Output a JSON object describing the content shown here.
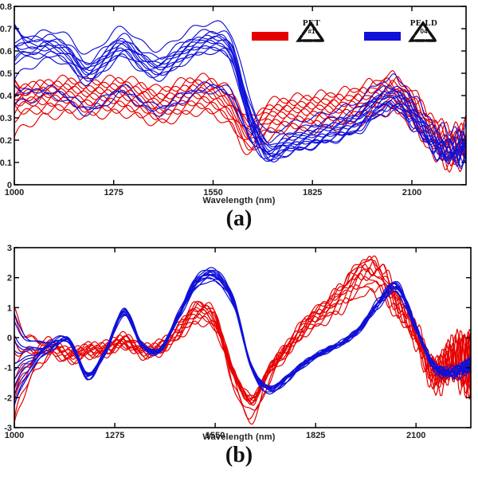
{
  "figure": {
    "caption_a": "(a)",
    "caption_b": "(b)"
  },
  "legend": {
    "items": [
      {
        "swatch_color": "#e60000",
        "code": "#1",
        "label": "PET"
      },
      {
        "swatch_color": "#1010d8",
        "code": "04",
        "label": "PE-LD"
      }
    ]
  },
  "chart_data": [
    {
      "type": "line",
      "id": "a",
      "title": "",
      "xlabel": "Wavelength (nm)",
      "ylabel": "",
      "xlim": [
        1000,
        2250
      ],
      "ylim": [
        0,
        0.8
      ],
      "grid": false,
      "xticks": [
        1000,
        1275,
        1550,
        1825,
        2100
      ],
      "xtick_labels": [
        "1000",
        "1275",
        "1550",
        "1825",
        "2100"
      ],
      "yticks": [
        0,
        0.1,
        0.2,
        0.3,
        0.4,
        0.5,
        0.6,
        0.7,
        0.8
      ],
      "ytick_labels": [
        "0",
        "0.1",
        "0.2",
        "0.3",
        "0.4",
        "0.5",
        "0.6",
        "0.7",
        "0.8"
      ],
      "x_nm": [
        1000,
        1050,
        1100,
        1150,
        1200,
        1250,
        1300,
        1350,
        1400,
        1450,
        1500,
        1550,
        1600,
        1650,
        1700,
        1750,
        1800,
        1850,
        1900,
        1950,
        2000,
        2050,
        2100,
        2150,
        2200,
        2250
      ],
      "series": [
        {
          "name": "PET",
          "color": "#e60000",
          "width": 1.15,
          "values": [
            0.38,
            0.39,
            0.4,
            0.405,
            0.395,
            0.4,
            0.405,
            0.385,
            0.36,
            0.385,
            0.41,
            0.4,
            0.345,
            0.225,
            0.295,
            0.315,
            0.325,
            0.335,
            0.345,
            0.365,
            0.395,
            0.415,
            0.35,
            0.245,
            0.175,
            0.195
          ],
          "dy": [
            -0.085,
            -0.065,
            -0.05,
            -0.035,
            -0.02,
            -0.005,
            0.005,
            0.02,
            0.03,
            0.04,
            0.055,
            0.07
          ],
          "jitter": 0.02,
          "jitter_wl": 65,
          "left_fan": 0.08,
          "end_fan": 0.05
        },
        {
          "name": "PE-LD low subset",
          "color": "#1010d8",
          "width": 1.15,
          "values": [
            0.42,
            0.41,
            0.42,
            0.385,
            0.335,
            0.375,
            0.425,
            0.37,
            0.335,
            0.375,
            0.42,
            0.435,
            0.4,
            0.22,
            0.135,
            0.155,
            0.175,
            0.195,
            0.22,
            0.25,
            0.31,
            0.345,
            0.28,
            0.18,
            0.135,
            0.145
          ],
          "dy": [
            -0.015,
            0,
            0.015
          ],
          "jitter": 0.014,
          "jitter_wl": 70,
          "left_fan": 0.05,
          "end_fan": 0.04
        },
        {
          "name": "PE-LD",
          "color": "#1010d8",
          "width": 1.15,
          "values": [
            0.62,
            0.61,
            0.62,
            0.585,
            0.505,
            0.565,
            0.625,
            0.56,
            0.525,
            0.575,
            0.625,
            0.645,
            0.6,
            0.32,
            0.155,
            0.185,
            0.21,
            0.235,
            0.26,
            0.295,
            0.365,
            0.4,
            0.33,
            0.215,
            0.16,
            0.17
          ],
          "dy": [
            -0.05,
            -0.04,
            -0.03,
            -0.02,
            -0.01,
            0,
            0.01,
            0.015,
            0.02,
            0.03,
            0.045,
            0.08
          ],
          "jitter": 0.012,
          "jitter_wl": 70,
          "left_fan": 0.1,
          "end_fan": 0.04
        }
      ]
    },
    {
      "type": "line",
      "id": "b",
      "title": "",
      "xlabel": "Wavelength (nm)",
      "ylabel": "",
      "xlim": [
        1000,
        2250
      ],
      "ylim": [
        -3,
        3
      ],
      "grid": false,
      "xticks": [
        1000,
        1275,
        1550,
        1825,
        2100
      ],
      "xtick_labels": [
        "1000",
        "1275",
        "1550",
        "1825",
        "2100"
      ],
      "yticks": [
        -3,
        -2,
        -1,
        0,
        1,
        2,
        3
      ],
      "ytick_labels": [
        "-3",
        "-2",
        "-1",
        "0",
        "1",
        "2",
        "3"
      ],
      "x_nm": [
        1000,
        1050,
        1100,
        1150,
        1200,
        1250,
        1300,
        1350,
        1400,
        1450,
        1500,
        1550,
        1600,
        1650,
        1700,
        1750,
        1800,
        1850,
        1900,
        1950,
        2000,
        2050,
        2100,
        2150,
        2200,
        2250
      ],
      "series": [
        {
          "name": "PET",
          "color": "#e60000",
          "width": 1.2,
          "values": [
            -0.85,
            -0.55,
            -0.3,
            -0.55,
            -0.4,
            -0.35,
            -0.1,
            -0.4,
            -0.3,
            0.25,
            0.85,
            0.55,
            -1.2,
            -2.15,
            -1.05,
            -0.3,
            0.45,
            0.9,
            1.45,
            2.05,
            2.0,
            1.1,
            0.1,
            -1.15,
            -0.7,
            -0.85
          ],
          "dy": [
            -0.22,
            -0.15,
            -0.1,
            -0.05,
            0,
            0.05,
            0.1,
            0.15,
            0.2,
            -0.18,
            0.08,
            -0.08
          ],
          "gain": [
            0.8,
            0.86,
            0.9,
            0.94,
            0.97,
            1.0,
            1.03,
            1.06,
            1.1,
            1.14,
            1.19,
            1.25
          ],
          "jitter": 0.12,
          "jitter_wl": 48,
          "left_fan": 1.8,
          "end_fan": 1.05
        },
        {
          "name": "PE-LD",
          "color": "#1010d8",
          "width": 1.25,
          "values": [
            -0.75,
            -0.55,
            -0.25,
            -0.1,
            -1.25,
            -0.45,
            0.85,
            -0.25,
            -0.4,
            0.75,
            1.85,
            2.05,
            1.2,
            -1.0,
            -1.7,
            -1.3,
            -0.8,
            -0.45,
            -0.15,
            0.35,
            1.2,
            1.65,
            0.3,
            -0.95,
            -1.15,
            -0.9
          ],
          "dy": [
            -0.06,
            -0.04,
            -0.02,
            0,
            0.02,
            0.04,
            0.06,
            -0.03,
            0.03,
            -0.05,
            0.05,
            0.01
          ],
          "gain": [
            0.93,
            0.95,
            0.97,
            0.98,
            0.99,
            1.0,
            1.01,
            1.02,
            1.03,
            1.05,
            1.07,
            1.09
          ],
          "jitter": 0.05,
          "jitter_wl": 60,
          "left_fan": 1.5,
          "end_fan": 0.22
        }
      ]
    }
  ]
}
